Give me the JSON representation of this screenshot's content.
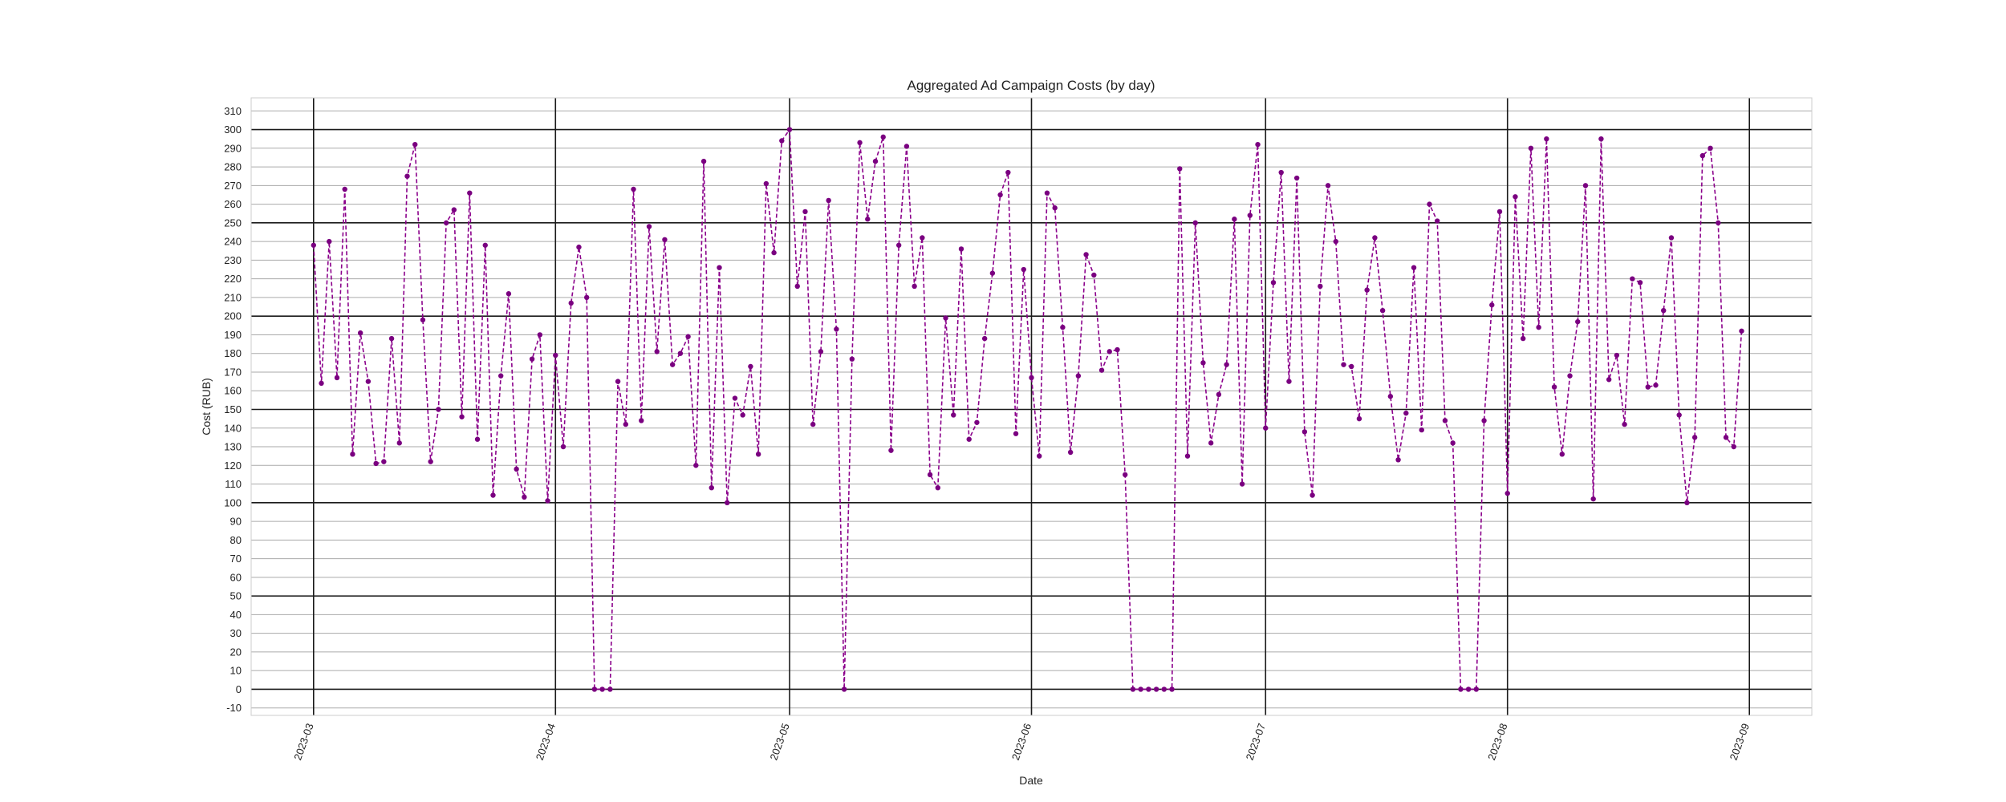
{
  "chart_data": {
    "type": "line",
    "title": "Aggregated Ad Campaign Costs (by day)",
    "xlabel": "Date",
    "ylabel": "Cost (RUB)",
    "ylim": [
      -14,
      317
    ],
    "xlim": [
      "2023-02-21",
      "2023-09-09"
    ],
    "y_ticks": [
      -10,
      0,
      10,
      20,
      30,
      40,
      50,
      60,
      70,
      80,
      90,
      100,
      110,
      120,
      130,
      140,
      150,
      160,
      170,
      180,
      190,
      200,
      210,
      220,
      230,
      240,
      250,
      260,
      270,
      280,
      290,
      300,
      310
    ],
    "y_major_ticks": [
      0,
      50,
      100,
      150,
      200,
      250,
      300
    ],
    "x_ticks": [
      "2023-03",
      "2023-04",
      "2023-05",
      "2023-06",
      "2023-07",
      "2023-08",
      "2023-09"
    ],
    "x_tick_dates": [
      "2023-03-01",
      "2023-04-01",
      "2023-05-01",
      "2023-06-01",
      "2023-07-01",
      "2023-08-01",
      "2023-09-01"
    ],
    "grid": true,
    "line_style": "dashed",
    "marker": "dot",
    "color": "#8b008b",
    "series": [
      {
        "start_date": "2023-03-01",
        "values": [
          238,
          164,
          240,
          167,
          268,
          126,
          191,
          165,
          121,
          122,
          188,
          132,
          275,
          292,
          198,
          122,
          150,
          250,
          257,
          146,
          266,
          134,
          238,
          104,
          168,
          212,
          118,
          103,
          177,
          190,
          101,
          179,
          130,
          207,
          237,
          210,
          0,
          0,
          0,
          165,
          142,
          268,
          144,
          248,
          181,
          241,
          174,
          180,
          189,
          120,
          283,
          108,
          226,
          100,
          156,
          147,
          173,
          126,
          271,
          234,
          294,
          300,
          216,
          256,
          142,
          181,
          262,
          193,
          0,
          177,
          293,
          252,
          283,
          296,
          128,
          238,
          291,
          216,
          242,
          115,
          108,
          199,
          147,
          236,
          134,
          143,
          188,
          223,
          265,
          277,
          137,
          225,
          167,
          125,
          266,
          258,
          194,
          127,
          168,
          233,
          222,
          171,
          181,
          182,
          115,
          0,
          0,
          0,
          0,
          0,
          0,
          279,
          125,
          250,
          175,
          132,
          158,
          174,
          252,
          110,
          254,
          292,
          140,
          218,
          277,
          165,
          274,
          138,
          104,
          216,
          270,
          240,
          174,
          173,
          145,
          214,
          242,
          203,
          157,
          123,
          148,
          226,
          139,
          260,
          251,
          144,
          132,
          0,
          0,
          0,
          144,
          206,
          256,
          105,
          264,
          188,
          290,
          194,
          295,
          162,
          126,
          168,
          197,
          270,
          102,
          295,
          166,
          179,
          142,
          220,
          218,
          162,
          163,
          203,
          242,
          147,
          100,
          135,
          286,
          290,
          250,
          135,
          130,
          192
        ]
      }
    ]
  }
}
